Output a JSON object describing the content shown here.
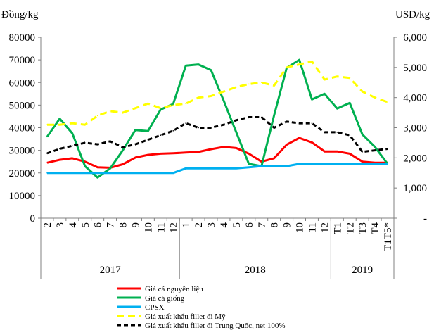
{
  "chart_data": {
    "type": "line",
    "left_axis_title": "Đồng/kg",
    "right_axis_title": "USD/kg",
    "left_ylim": [
      0,
      80000
    ],
    "left_yticks": [
      "0",
      "10000",
      "20000",
      "30000",
      "40000",
      "50000",
      "60000",
      "70000",
      "80000"
    ],
    "right_ylim": [
      0,
      6000
    ],
    "right_yticks": [
      "-",
      "1,000",
      "2,000",
      "3,000",
      "4,000",
      "5,000",
      "6,000"
    ],
    "categories": [
      "2",
      "3",
      "4",
      "5",
      "6",
      "7",
      "8",
      "9",
      "10",
      "11",
      "12",
      "1",
      "2",
      "3",
      "4",
      "5",
      "6",
      "7",
      "8",
      "9",
      "10",
      "11",
      "12",
      "T1",
      "T2",
      "T3",
      "T4",
      "T1T5*"
    ],
    "year_groups": [
      {
        "label": "2017",
        "start": 0,
        "end": 10
      },
      {
        "label": "2018",
        "start": 11,
        "end": 22
      },
      {
        "label": "2019",
        "start": 23,
        "end": 27
      }
    ],
    "grid": false,
    "legend_position": "bottom",
    "series": [
      {
        "name": "Giá cá nguyên liệu",
        "axis": "left",
        "color": "#ff0000",
        "dash": "solid",
        "values": [
          24500,
          25800,
          26500,
          25000,
          22500,
          22300,
          23800,
          26800,
          28000,
          28500,
          28700,
          29000,
          29300,
          30500,
          31500,
          31000,
          28500,
          25000,
          26500,
          32500,
          35500,
          33500,
          29500,
          29500,
          28500,
          25000,
          24500,
          24500
        ]
      },
      {
        "name": "Giá cá giống",
        "axis": "left",
        "color": "#00b050",
        "dash": "solid",
        "values": [
          36000,
          44000,
          37500,
          23000,
          18000,
          22000,
          30000,
          39000,
          38500,
          48000,
          50500,
          67500,
          68000,
          65500,
          52000,
          38000,
          24000,
          23000,
          45500,
          66500,
          70000,
          52500,
          55000,
          48500,
          51000,
          37000,
          31500,
          24000
        ]
      },
      {
        "name": "CPSX",
        "axis": "left",
        "color": "#00b0f0",
        "dash": "solid",
        "values": [
          20000,
          20000,
          20000,
          20000,
          20000,
          20000,
          20000,
          20000,
          20000,
          20000,
          20000,
          22000,
          22000,
          22000,
          22000,
          22000,
          22500,
          23000,
          23000,
          23000,
          24000,
          24000,
          24000,
          24000,
          24000,
          24000,
          24000,
          24000
        ]
      },
      {
        "name": "Giá xuất khẩu fillet  đi Mỹ",
        "axis": "right",
        "color": "#ffff00",
        "dash": "long",
        "values": [
          3100,
          3100,
          3150,
          3100,
          3400,
          3550,
          3500,
          3650,
          3800,
          3650,
          3750,
          3800,
          4000,
          4050,
          4200,
          4350,
          4450,
          4500,
          4400,
          5000,
          5100,
          5200,
          4600,
          4700,
          4650,
          4200,
          4000,
          3850
        ]
      },
      {
        "name": "Giá xuất khẩu fillet  đi Trung Quốc, net 100%",
        "axis": "right",
        "color": "#000000",
        "dash": "short",
        "values": [
          2150,
          2300,
          2400,
          2500,
          2450,
          2550,
          2350,
          2450,
          2600,
          2750,
          2900,
          3150,
          3000,
          3000,
          3100,
          3250,
          3350,
          3350,
          3000,
          3200,
          3150,
          3150,
          2850,
          2850,
          2750,
          2200,
          2250,
          2300
        ]
      }
    ]
  }
}
